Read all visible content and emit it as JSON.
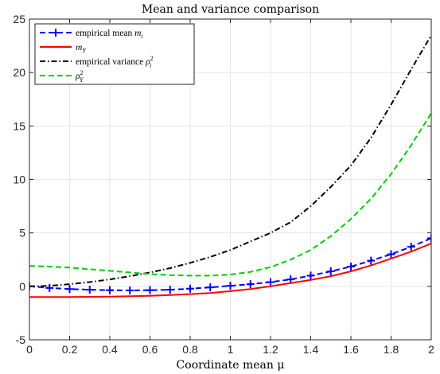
{
  "chart_data": {
    "type": "line",
    "title": "Mean and variance comparison",
    "xlabel": "Coordinate mean μ",
    "ylabel": "",
    "xlim": [
      0,
      2
    ],
    "ylim": [
      -5,
      25
    ],
    "x_ticks": [
      "0",
      "0.2",
      "0.4",
      "0.6",
      "0.8",
      "1",
      "1.2",
      "1.4",
      "1.6",
      "1.8",
      "2"
    ],
    "y_ticks": [
      "-5",
      "0",
      "5",
      "10",
      "15",
      "20",
      "25"
    ],
    "grid": true,
    "legend_position": "top-left",
    "x": [
      0,
      0.1,
      0.2,
      0.3,
      0.4,
      0.5,
      0.6,
      0.7,
      0.8,
      0.9,
      1.0,
      1.1,
      1.2,
      1.3,
      1.4,
      1.5,
      1.6,
      1.7,
      1.8,
      1.9,
      2.0
    ],
    "series": [
      {
        "name": "empirical mean m_i",
        "label_main": "empirical mean ",
        "label_sym": "m",
        "label_sub": "i",
        "label_sup": "",
        "color": "#0000ff",
        "style": "dashed",
        "marker": "plus",
        "values": [
          0.0,
          -0.15,
          -0.25,
          -0.32,
          -0.36,
          -0.38,
          -0.36,
          -0.32,
          -0.22,
          -0.1,
          0.05,
          0.2,
          0.4,
          0.65,
          1.0,
          1.4,
          1.85,
          2.4,
          3.0,
          3.7,
          4.5
        ]
      },
      {
        "name": "m_Y",
        "label_main": "",
        "label_sym": "m",
        "label_sub": "Y",
        "label_sup": "",
        "color": "#ff0000",
        "style": "solid",
        "marker": "none",
        "values": [
          -1.0,
          -1.0,
          -1.0,
          -0.98,
          -0.96,
          -0.93,
          -0.88,
          -0.82,
          -0.73,
          -0.62,
          -0.45,
          -0.25,
          0.0,
          0.3,
          0.6,
          0.95,
          1.4,
          1.95,
          2.6,
          3.25,
          4.0
        ]
      },
      {
        "name": "empirical variance ρ_i^2",
        "label_main": "empirical variance ",
        "label_sym": "ρ",
        "label_sub": "i",
        "label_sup": "2",
        "color": "#000000",
        "style": "dashdot",
        "marker": "none",
        "values": [
          0.0,
          0.05,
          0.2,
          0.4,
          0.65,
          0.95,
          1.3,
          1.7,
          2.2,
          2.75,
          3.4,
          4.2,
          5.0,
          6.0,
          7.5,
          9.3,
          11.3,
          13.9,
          17.0,
          20.3,
          23.5
        ]
      },
      {
        "name": "ρ_Y^2",
        "label_main": "",
        "label_sym": "ρ",
        "label_sub": "Y",
        "label_sup": "2",
        "color": "#00cc00",
        "style": "dashed",
        "marker": "none",
        "values": [
          1.9,
          1.85,
          1.75,
          1.6,
          1.45,
          1.3,
          1.15,
          1.05,
          1.0,
          1.0,
          1.1,
          1.35,
          1.8,
          2.5,
          3.4,
          4.7,
          6.3,
          8.2,
          10.5,
          13.2,
          16.2
        ]
      }
    ]
  }
}
